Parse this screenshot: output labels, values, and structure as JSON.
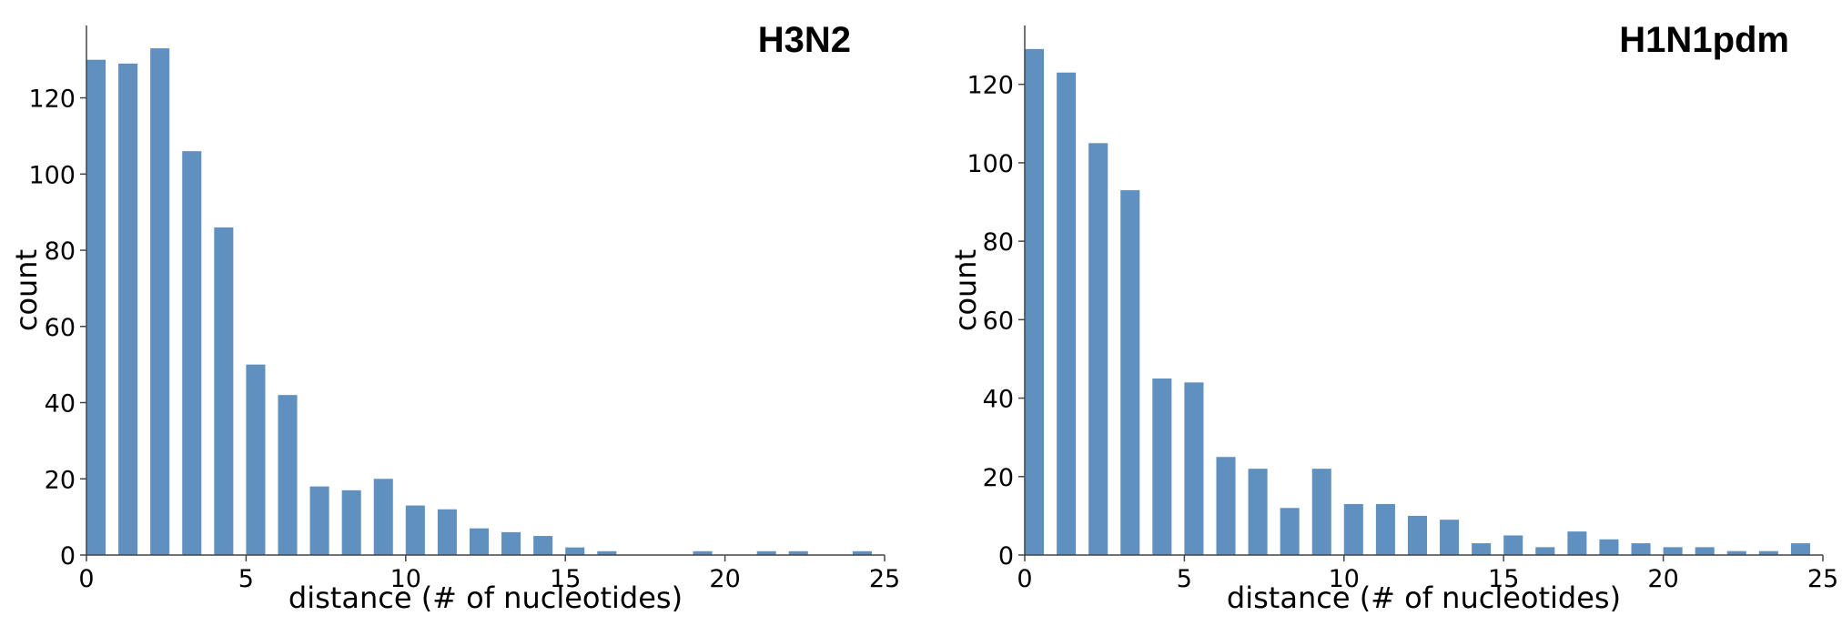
{
  "chart_data": [
    {
      "type": "bar",
      "title": "H3N2",
      "xlabel": "distance (# of nucleotides)",
      "ylabel": "count",
      "x": [
        0,
        1,
        2,
        3,
        4,
        5,
        6,
        7,
        8,
        9,
        10,
        11,
        12,
        13,
        14,
        15,
        16,
        17,
        18,
        19,
        20,
        21,
        22,
        23,
        24
      ],
      "values": [
        130,
        129,
        133,
        106,
        86,
        50,
        42,
        18,
        17,
        20,
        13,
        12,
        7,
        6,
        5,
        2,
        1,
        0,
        0,
        1,
        0,
        1,
        1,
        0,
        1
      ],
      "xlim": [
        0,
        25
      ],
      "ylim": [
        0,
        139
      ],
      "xticks": [
        0,
        5,
        10,
        15,
        20,
        25
      ],
      "yticks": [
        0,
        20,
        40,
        60,
        80,
        100,
        120
      ],
      "grid": false,
      "bar_color": "#6090bf"
    },
    {
      "type": "bar",
      "title": "H1N1pdm",
      "xlabel": "distance (# of nucleotides)",
      "ylabel": "count",
      "x": [
        0,
        1,
        2,
        3,
        4,
        5,
        6,
        7,
        8,
        9,
        10,
        11,
        12,
        13,
        14,
        15,
        16,
        17,
        18,
        19,
        20,
        21,
        22,
        23,
        24
      ],
      "values": [
        129,
        123,
        105,
        93,
        45,
        44,
        25,
        22,
        12,
        22,
        13,
        13,
        10,
        9,
        3,
        5,
        2,
        6,
        4,
        3,
        2,
        2,
        1,
        1,
        3
      ],
      "xlim": [
        0,
        25
      ],
      "ylim": [
        0,
        135
      ],
      "xticks": [
        0,
        5,
        10,
        15,
        20,
        25
      ],
      "yticks": [
        0,
        20,
        40,
        60,
        80,
        100,
        120
      ],
      "grid": false,
      "bar_color": "#6090bf"
    }
  ]
}
